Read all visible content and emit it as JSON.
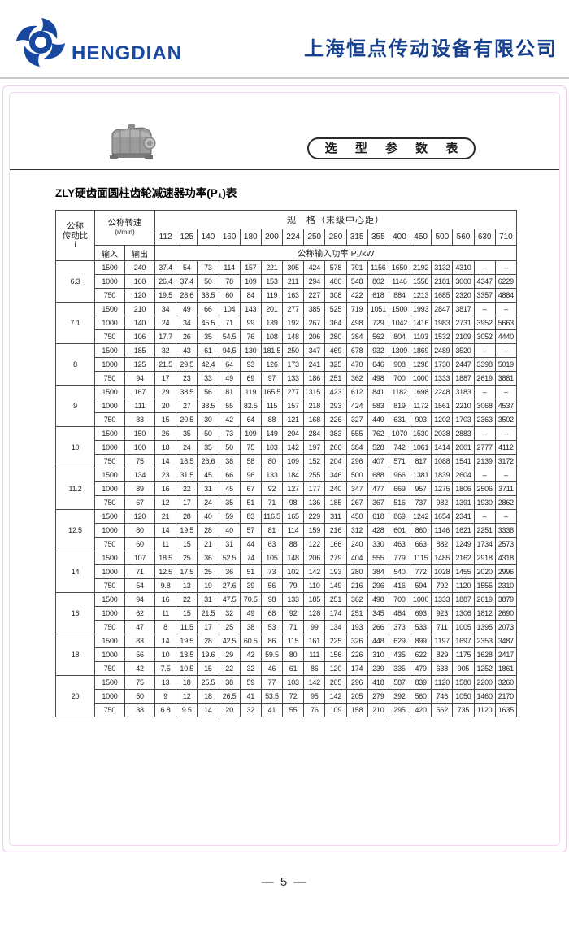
{
  "header": {
    "logo_text": "HENGDIAN",
    "company_name": "上海恒点传动设备有限公司",
    "brand_color": "#17479e"
  },
  "page": {
    "badge": "选 型 参 数 表",
    "title": "ZLY硬齿面圆柱齿轮减速器功率(P₁)表",
    "page_number": "— 5 —"
  },
  "table": {
    "corner": [
      "公称",
      "传动比",
      "i"
    ],
    "speed_header": "公称转速",
    "speed_unit": "(r/min)",
    "input_label": "输入",
    "output_label": "输出",
    "spec_header": "规　格（末级中心距）",
    "power_header": "公称输入功率 P₁/kW",
    "sizes": [
      "112",
      "125",
      "140",
      "160",
      "180",
      "200",
      "224",
      "250",
      "280",
      "315",
      "355",
      "400",
      "450",
      "500",
      "560",
      "630",
      "710"
    ],
    "groups": [
      {
        "ratio": "6.3",
        "rows": [
          {
            "in": "1500",
            "out": "240",
            "v": [
              "37.4",
              "54",
              "73",
              "114",
              "157",
              "221",
              "305",
              "424",
              "578",
              "791",
              "1156",
              "1650",
              "2192",
              "3132",
              "4310",
              "–",
              "–"
            ]
          },
          {
            "in": "1000",
            "out": "160",
            "v": [
              "26.4",
              "37.4",
              "50",
              "78",
              "109",
              "153",
              "211",
              "294",
              "400",
              "548",
              "802",
              "1146",
              "1558",
              "2181",
              "3000",
              "4347",
              "6229"
            ]
          },
          {
            "in": "750",
            "out": "120",
            "v": [
              "19.5",
              "28.6",
              "38.5",
              "60",
              "84",
              "119",
              "163",
              "227",
              "308",
              "422",
              "618",
              "884",
              "1213",
              "1685",
              "2320",
              "3357",
              "4884"
            ]
          }
        ]
      },
      {
        "ratio": "7.1",
        "rows": [
          {
            "in": "1500",
            "out": "210",
            "v": [
              "34",
              "49",
              "66",
              "104",
              "143",
              "201",
              "277",
              "385",
              "525",
              "719",
              "1051",
              "1500",
              "1993",
              "2847",
              "3817",
              "–",
              "–"
            ]
          },
          {
            "in": "1000",
            "out": "140",
            "v": [
              "24",
              "34",
              "45.5",
              "71",
              "99",
              "139",
              "192",
              "267",
              "364",
              "498",
              "729",
              "1042",
              "1416",
              "1983",
              "2731",
              "3952",
              "5663"
            ]
          },
          {
            "in": "750",
            "out": "106",
            "v": [
              "17.7",
              "26",
              "35",
              "54.5",
              "76",
              "108",
              "148",
              "206",
              "280",
              "384",
              "562",
              "804",
              "1103",
              "1532",
              "2109",
              "3052",
              "4440"
            ]
          }
        ]
      },
      {
        "ratio": "8",
        "rows": [
          {
            "in": "1500",
            "out": "185",
            "v": [
              "32",
              "43",
              "61",
              "94.5",
              "130",
              "181.5",
              "250",
              "347",
              "469",
              "678",
              "932",
              "1309",
              "1869",
              "2489",
              "3520",
              "–",
              "–"
            ]
          },
          {
            "in": "1000",
            "out": "125",
            "v": [
              "21.5",
              "29.5",
              "42.4",
              "64",
              "93",
              "126",
              "173",
              "241",
              "325",
              "470",
              "646",
              "908",
              "1298",
              "1730",
              "2447",
              "3398",
              "5019"
            ]
          },
          {
            "in": "750",
            "out": "94",
            "v": [
              "17",
              "23",
              "33",
              "49",
              "69",
              "97",
              "133",
              "186",
              "251",
              "362",
              "498",
              "700",
              "1000",
              "1333",
              "1887",
              "2619",
              "3881"
            ]
          }
        ]
      },
      {
        "ratio": "9",
        "rows": [
          {
            "in": "1500",
            "out": "167",
            "v": [
              "29",
              "38.5",
              "56",
              "81",
              "119",
              "165.5",
              "277",
              "315",
              "423",
              "612",
              "841",
              "1182",
              "1698",
              "2248",
              "3183",
              "–",
              "–"
            ]
          },
          {
            "in": "1000",
            "out": "111",
            "v": [
              "20",
              "27",
              "38.5",
              "55",
              "82.5",
              "115",
              "157",
              "218",
              "293",
              "424",
              "583",
              "819",
              "1172",
              "1561",
              "2210",
              "3068",
              "4537"
            ]
          },
          {
            "in": "750",
            "out": "83",
            "v": [
              "15",
              "20.5",
              "30",
              "42",
              "64",
              "88",
              "121",
              "168",
              "226",
              "327",
              "449",
              "631",
              "903",
              "1202",
              "1703",
              "2363",
              "3502"
            ]
          }
        ]
      },
      {
        "ratio": "10",
        "rows": [
          {
            "in": "1500",
            "out": "150",
            "v": [
              "26",
              "35",
              "50",
              "73",
              "109",
              "149",
              "204",
              "284",
              "383",
              "555",
              "762",
              "1070",
              "1530",
              "2038",
              "2883",
              "–",
              "–"
            ]
          },
          {
            "in": "1000",
            "out": "100",
            "v": [
              "18",
              "24",
              "35",
              "50",
              "75",
              "103",
              "142",
              "197",
              "266",
              "384",
              "528",
              "742",
              "1061",
              "1414",
              "2001",
              "2777",
              "4112"
            ]
          },
          {
            "in": "750",
            "out": "75",
            "v": [
              "14",
              "18.5",
              "26.6",
              "38",
              "58",
              "80",
              "109",
              "152",
              "204",
              "296",
              "407",
              "571",
              "817",
              "1088",
              "1541",
              "2139",
              "3172"
            ]
          }
        ]
      },
      {
        "ratio": "11.2",
        "rows": [
          {
            "in": "1500",
            "out": "134",
            "v": [
              "23",
              "31.5",
              "45",
              "66",
              "96",
              "133",
              "184",
              "255",
              "346",
              "500",
              "688",
              "966",
              "1381",
              "1839",
              "2604",
              "–",
              "–"
            ]
          },
          {
            "in": "1000",
            "out": "89",
            "v": [
              "16",
              "22",
              "31",
              "45",
              "67",
              "92",
              "127",
              "177",
              "240",
              "347",
              "477",
              "669",
              "957",
              "1275",
              "1806",
              "2506",
              "3711"
            ]
          },
          {
            "in": "750",
            "out": "67",
            "v": [
              "12",
              "17",
              "24",
              "35",
              "51",
              "71",
              "98",
              "136",
              "185",
              "267",
              "367",
              "516",
              "737",
              "982",
              "1391",
              "1930",
              "2862"
            ]
          }
        ]
      },
      {
        "ratio": "12.5",
        "rows": [
          {
            "in": "1500",
            "out": "120",
            "v": [
              "21",
              "28",
              "40",
              "59",
              "83",
              "116.5",
              "165",
              "229",
              "311",
              "450",
              "618",
              "869",
              "1242",
              "1654",
              "2341",
              "–",
              "–"
            ]
          },
          {
            "in": "1000",
            "out": "80",
            "v": [
              "14",
              "19.5",
              "28",
              "40",
              "57",
              "81",
              "114",
              "159",
              "216",
              "312",
              "428",
              "601",
              "860",
              "1146",
              "1621",
              "2251",
              "3338"
            ]
          },
          {
            "in": "750",
            "out": "60",
            "v": [
              "11",
              "15",
              "21",
              "31",
              "44",
              "63",
              "88",
              "122",
              "166",
              "240",
              "330",
              "463",
              "663",
              "882",
              "1249",
              "1734",
              "2573"
            ]
          }
        ]
      },
      {
        "ratio": "14",
        "rows": [
          {
            "in": "1500",
            "out": "107",
            "v": [
              "18.5",
              "25",
              "36",
              "52.5",
              "74",
              "105",
              "148",
              "206",
              "279",
              "404",
              "555",
              "779",
              "1115",
              "1485",
              "2162",
              "2918",
              "4318"
            ]
          },
          {
            "in": "1000",
            "out": "71",
            "v": [
              "12.5",
              "17.5",
              "25",
              "36",
              "51",
              "73",
              "102",
              "142",
              "193",
              "280",
              "384",
              "540",
              "772",
              "1028",
              "1455",
              "2020",
              "2996"
            ]
          },
          {
            "in": "750",
            "out": "54",
            "v": [
              "9.8",
              "13",
              "19",
              "27.6",
              "39",
              "56",
              "79",
              "110",
              "149",
              "216",
              "296",
              "416",
              "594",
              "792",
              "1120",
              "1555",
              "2310"
            ]
          }
        ]
      },
      {
        "ratio": "16",
        "rows": [
          {
            "in": "1500",
            "out": "94",
            "v": [
              "16",
              "22",
              "31",
              "47.5",
              "70.5",
              "98",
              "133",
              "185",
              "251",
              "362",
              "498",
              "700",
              "1000",
              "1333",
              "1887",
              "2619",
              "3879"
            ]
          },
          {
            "in": "1000",
            "out": "62",
            "v": [
              "11",
              "15",
              "21.5",
              "32",
              "49",
              "68",
              "92",
              "128",
              "174",
              "251",
              "345",
              "484",
              "693",
              "923",
              "1306",
              "1812",
              "2690"
            ]
          },
          {
            "in": "750",
            "out": "47",
            "v": [
              "8",
              "11.5",
              "17",
              "25",
              "38",
              "53",
              "71",
              "99",
              "134",
              "193",
              "266",
              "373",
              "533",
              "711",
              "1005",
              "1395",
              "2073"
            ]
          }
        ]
      },
      {
        "ratio": "18",
        "rows": [
          {
            "in": "1500",
            "out": "83",
            "v": [
              "14",
              "19.5",
              "28",
              "42.5",
              "60.5",
              "86",
              "115",
              "161",
              "225",
              "326",
              "448",
              "629",
              "899",
              "1197",
              "1697",
              "2353",
              "3487"
            ]
          },
          {
            "in": "1000",
            "out": "56",
            "v": [
              "10",
              "13.5",
              "19.6",
              "29",
              "42",
              "59.5",
              "80",
              "111",
              "156",
              "226",
              "310",
              "435",
              "622",
              "829",
              "1175",
              "1628",
              "2417"
            ]
          },
          {
            "in": "750",
            "out": "42",
            "v": [
              "7.5",
              "10.5",
              "15",
              "22",
              "32",
              "46",
              "61",
              "86",
              "120",
              "174",
              "239",
              "335",
              "479",
              "638",
              "905",
              "1252",
              "1861"
            ]
          }
        ]
      },
      {
        "ratio": "20",
        "rows": [
          {
            "in": "1500",
            "out": "75",
            "v": [
              "13",
              "18",
              "25.5",
              "38",
              "59",
              "77",
              "103",
              "142",
              "205",
              "296",
              "418",
              "587",
              "839",
              "1120",
              "1580",
              "2200",
              "3260"
            ]
          },
          {
            "in": "1000",
            "out": "50",
            "v": [
              "9",
              "12",
              "18",
              "26.5",
              "41",
              "53.5",
              "72",
              "95",
              "142",
              "205",
              "279",
              "392",
              "560",
              "746",
              "1050",
              "1460",
              "2170"
            ]
          },
          {
            "in": "750",
            "out": "38",
            "v": [
              "6.8",
              "9.5",
              "14",
              "20",
              "32",
              "41",
              "55",
              "76",
              "109",
              "158",
              "210",
              "295",
              "420",
              "562",
              "735",
              "1120",
              "1635"
            ]
          }
        ]
      }
    ]
  }
}
